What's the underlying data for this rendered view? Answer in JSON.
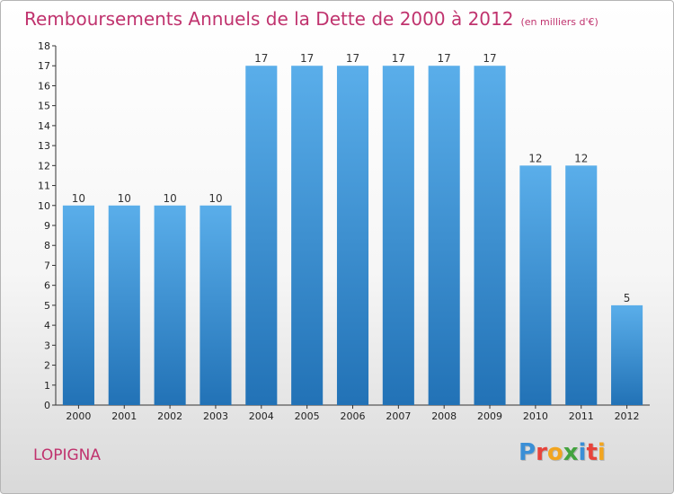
{
  "header": {
    "title": "Remboursements Annuels de la Dette de 2000 à 2012",
    "subtitle": "(en milliers d'€)"
  },
  "footer": {
    "commune": "LOPIGNA",
    "logo": {
      "letters": [
        "P",
        "r",
        "o",
        "x",
        "i",
        "t",
        "i"
      ],
      "colors": [
        "#3a8fd6",
        "#e7433b",
        "#f2a51f",
        "#43a33f",
        "#3a8fd6",
        "#e7433b",
        "#f2a51f"
      ]
    }
  },
  "chart_data": {
    "type": "bar",
    "title": "Remboursements Annuels de la Dette de 2000 à 2012",
    "subtitle": "(en milliers d'€)",
    "xlabel": "",
    "ylabel": "",
    "categories": [
      "2000",
      "2001",
      "2002",
      "2003",
      "2004",
      "2005",
      "2006",
      "2007",
      "2008",
      "2009",
      "2010",
      "2011",
      "2012"
    ],
    "values": [
      10,
      10,
      10,
      10,
      17,
      17,
      17,
      17,
      17,
      17,
      12,
      12,
      5
    ],
    "data_labels": [
      "10",
      "10",
      "10",
      "10",
      "17",
      "17",
      "17",
      "17",
      "17",
      "17",
      "12",
      "12",
      "5"
    ],
    "ylim": [
      0,
      18
    ],
    "yticks": [
      0,
      1,
      2,
      3,
      4,
      5,
      6,
      7,
      8,
      9,
      10,
      11,
      12,
      13,
      14,
      15,
      16,
      17,
      18
    ],
    "grid": false,
    "legend": "none",
    "colors": {
      "bar_top": "#5aaeea",
      "bar_bottom": "#2272b6",
      "axis": "#333333"
    }
  }
}
